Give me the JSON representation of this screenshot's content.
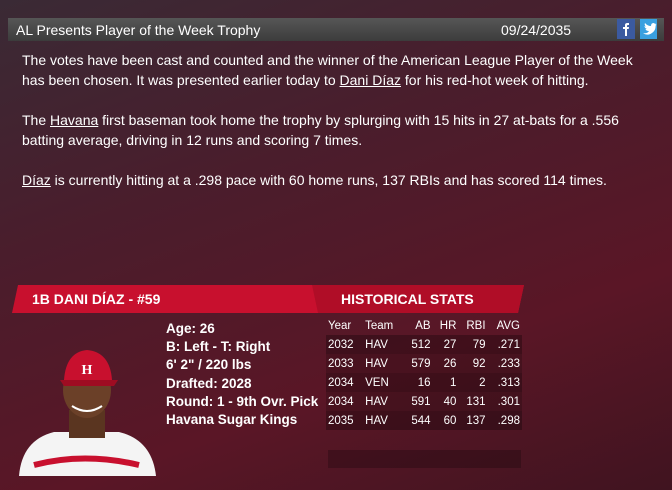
{
  "header": {
    "title": "AL Presents Player of the Week Trophy",
    "date": "09/24/2035"
  },
  "article": {
    "paragraphs": [
      [
        {
          "text": "The votes have been cast and counted and the winner of the American League Player of the Week has been chosen. It was presented earlier today to ",
          "link": false
        },
        {
          "text": "Dani Díaz",
          "link": true
        },
        {
          "text": " for his red-hot week of hitting.",
          "link": false
        }
      ],
      [
        {
          "text": "The ",
          "link": false
        },
        {
          "text": "Havana",
          "link": true
        },
        {
          "text": " first baseman took home the trophy by splurging with 15 hits in 27 at-bats for a .556 batting average, driving in 12 runs and scoring 7 times.",
          "link": false
        }
      ],
      [
        {
          "text": "Díaz",
          "link": true
        },
        {
          "text": " is currently hitting at a .298 pace with 60 home runs, 137 RBIs and has scored 114 times.",
          "link": false
        }
      ]
    ]
  },
  "player": {
    "name": "1B DANI DÍAZ - #59",
    "bio": [
      "Age: 26",
      "B: Left - T: Right",
      "6' 2\" / 220 lbs",
      "Drafted: 2028",
      "Round: 1 - 9th Ovr. Pick",
      "Havana Sugar Kings"
    ]
  },
  "stats": {
    "title": "HISTORICAL STATS",
    "columns": [
      "Year",
      "Team",
      "AB",
      "HR",
      "RBI",
      "AVG"
    ],
    "rows": [
      [
        2032,
        "HAV",
        512,
        27,
        79,
        ".271"
      ],
      [
        2033,
        "HAV",
        579,
        26,
        92,
        ".233"
      ],
      [
        2034,
        "VEN",
        16,
        1,
        2,
        ".313"
      ],
      [
        2034,
        "HAV",
        591,
        40,
        131,
        ".301"
      ],
      [
        2035,
        "HAV",
        544,
        60,
        137,
        ".298"
      ]
    ]
  }
}
